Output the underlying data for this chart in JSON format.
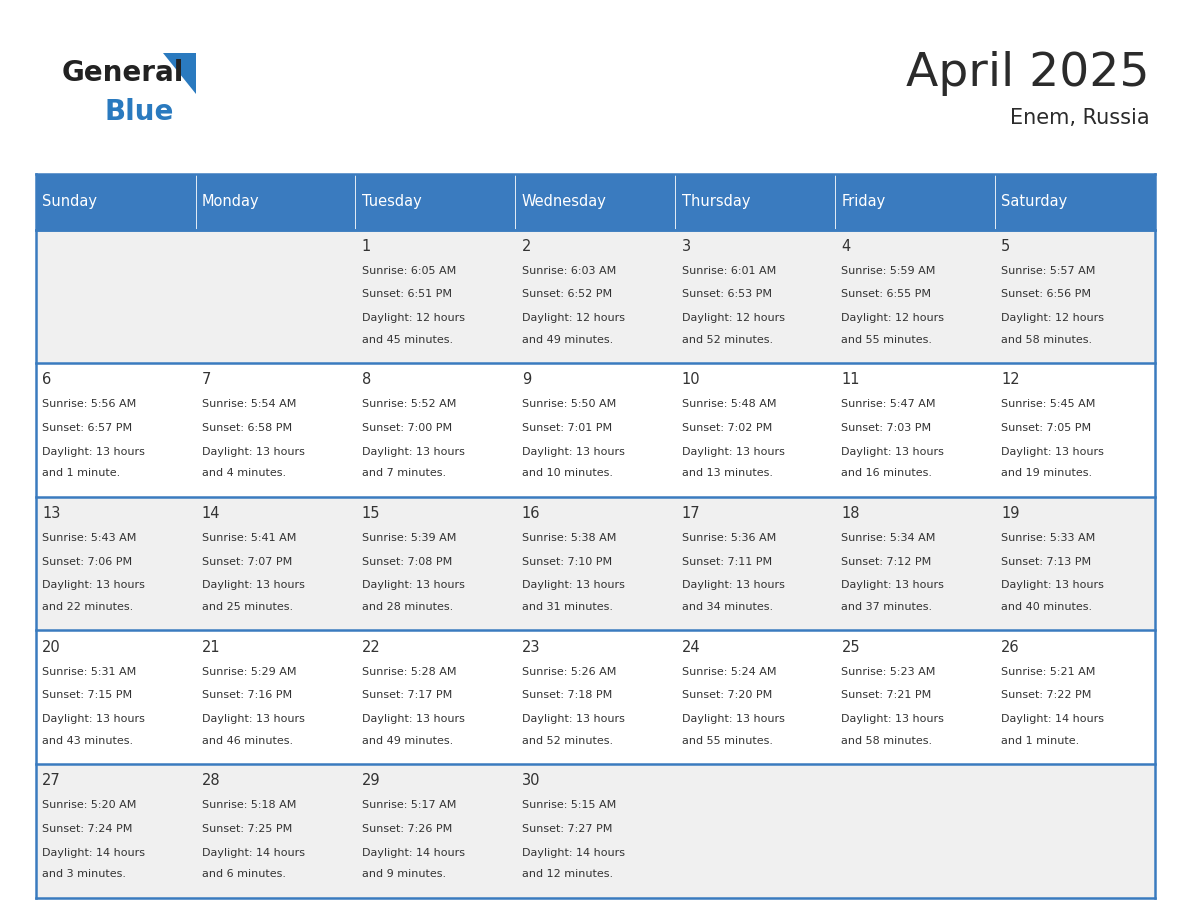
{
  "title": "April 2025",
  "subtitle": "Enem, Russia",
  "days_of_week": [
    "Sunday",
    "Monday",
    "Tuesday",
    "Wednesday",
    "Thursday",
    "Friday",
    "Saturday"
  ],
  "header_bg": "#3a7bbf",
  "header_text_color": "#ffffff",
  "cell_bg_odd": "#f0f0f0",
  "cell_bg_even": "#ffffff",
  "border_color": "#3a7bbf",
  "text_color": "#333333",
  "title_color": "#2b2b2b",
  "logo_general_color": "#222222",
  "logo_blue_color": "#2a7abf",
  "logo_triangle_color": "#2a7abf",
  "weeks": [
    [
      {
        "day": "",
        "sunrise": "",
        "sunset": "",
        "daylight1": "",
        "daylight2": ""
      },
      {
        "day": "",
        "sunrise": "",
        "sunset": "",
        "daylight1": "",
        "daylight2": ""
      },
      {
        "day": "1",
        "sunrise": "Sunrise: 6:05 AM",
        "sunset": "Sunset: 6:51 PM",
        "daylight1": "Daylight: 12 hours",
        "daylight2": "and 45 minutes."
      },
      {
        "day": "2",
        "sunrise": "Sunrise: 6:03 AM",
        "sunset": "Sunset: 6:52 PM",
        "daylight1": "Daylight: 12 hours",
        "daylight2": "and 49 minutes."
      },
      {
        "day": "3",
        "sunrise": "Sunrise: 6:01 AM",
        "sunset": "Sunset: 6:53 PM",
        "daylight1": "Daylight: 12 hours",
        "daylight2": "and 52 minutes."
      },
      {
        "day": "4",
        "sunrise": "Sunrise: 5:59 AM",
        "sunset": "Sunset: 6:55 PM",
        "daylight1": "Daylight: 12 hours",
        "daylight2": "and 55 minutes."
      },
      {
        "day": "5",
        "sunrise": "Sunrise: 5:57 AM",
        "sunset": "Sunset: 6:56 PM",
        "daylight1": "Daylight: 12 hours",
        "daylight2": "and 58 minutes."
      }
    ],
    [
      {
        "day": "6",
        "sunrise": "Sunrise: 5:56 AM",
        "sunset": "Sunset: 6:57 PM",
        "daylight1": "Daylight: 13 hours",
        "daylight2": "and 1 minute."
      },
      {
        "day": "7",
        "sunrise": "Sunrise: 5:54 AM",
        "sunset": "Sunset: 6:58 PM",
        "daylight1": "Daylight: 13 hours",
        "daylight2": "and 4 minutes."
      },
      {
        "day": "8",
        "sunrise": "Sunrise: 5:52 AM",
        "sunset": "Sunset: 7:00 PM",
        "daylight1": "Daylight: 13 hours",
        "daylight2": "and 7 minutes."
      },
      {
        "day": "9",
        "sunrise": "Sunrise: 5:50 AM",
        "sunset": "Sunset: 7:01 PM",
        "daylight1": "Daylight: 13 hours",
        "daylight2": "and 10 minutes."
      },
      {
        "day": "10",
        "sunrise": "Sunrise: 5:48 AM",
        "sunset": "Sunset: 7:02 PM",
        "daylight1": "Daylight: 13 hours",
        "daylight2": "and 13 minutes."
      },
      {
        "day": "11",
        "sunrise": "Sunrise: 5:47 AM",
        "sunset": "Sunset: 7:03 PM",
        "daylight1": "Daylight: 13 hours",
        "daylight2": "and 16 minutes."
      },
      {
        "day": "12",
        "sunrise": "Sunrise: 5:45 AM",
        "sunset": "Sunset: 7:05 PM",
        "daylight1": "Daylight: 13 hours",
        "daylight2": "and 19 minutes."
      }
    ],
    [
      {
        "day": "13",
        "sunrise": "Sunrise: 5:43 AM",
        "sunset": "Sunset: 7:06 PM",
        "daylight1": "Daylight: 13 hours",
        "daylight2": "and 22 minutes."
      },
      {
        "day": "14",
        "sunrise": "Sunrise: 5:41 AM",
        "sunset": "Sunset: 7:07 PM",
        "daylight1": "Daylight: 13 hours",
        "daylight2": "and 25 minutes."
      },
      {
        "day": "15",
        "sunrise": "Sunrise: 5:39 AM",
        "sunset": "Sunset: 7:08 PM",
        "daylight1": "Daylight: 13 hours",
        "daylight2": "and 28 minutes."
      },
      {
        "day": "16",
        "sunrise": "Sunrise: 5:38 AM",
        "sunset": "Sunset: 7:10 PM",
        "daylight1": "Daylight: 13 hours",
        "daylight2": "and 31 minutes."
      },
      {
        "day": "17",
        "sunrise": "Sunrise: 5:36 AM",
        "sunset": "Sunset: 7:11 PM",
        "daylight1": "Daylight: 13 hours",
        "daylight2": "and 34 minutes."
      },
      {
        "day": "18",
        "sunrise": "Sunrise: 5:34 AM",
        "sunset": "Sunset: 7:12 PM",
        "daylight1": "Daylight: 13 hours",
        "daylight2": "and 37 minutes."
      },
      {
        "day": "19",
        "sunrise": "Sunrise: 5:33 AM",
        "sunset": "Sunset: 7:13 PM",
        "daylight1": "Daylight: 13 hours",
        "daylight2": "and 40 minutes."
      }
    ],
    [
      {
        "day": "20",
        "sunrise": "Sunrise: 5:31 AM",
        "sunset": "Sunset: 7:15 PM",
        "daylight1": "Daylight: 13 hours",
        "daylight2": "and 43 minutes."
      },
      {
        "day": "21",
        "sunrise": "Sunrise: 5:29 AM",
        "sunset": "Sunset: 7:16 PM",
        "daylight1": "Daylight: 13 hours",
        "daylight2": "and 46 minutes."
      },
      {
        "day": "22",
        "sunrise": "Sunrise: 5:28 AM",
        "sunset": "Sunset: 7:17 PM",
        "daylight1": "Daylight: 13 hours",
        "daylight2": "and 49 minutes."
      },
      {
        "day": "23",
        "sunrise": "Sunrise: 5:26 AM",
        "sunset": "Sunset: 7:18 PM",
        "daylight1": "Daylight: 13 hours",
        "daylight2": "and 52 minutes."
      },
      {
        "day": "24",
        "sunrise": "Sunrise: 5:24 AM",
        "sunset": "Sunset: 7:20 PM",
        "daylight1": "Daylight: 13 hours",
        "daylight2": "and 55 minutes."
      },
      {
        "day": "25",
        "sunrise": "Sunrise: 5:23 AM",
        "sunset": "Sunset: 7:21 PM",
        "daylight1": "Daylight: 13 hours",
        "daylight2": "and 58 minutes."
      },
      {
        "day": "26",
        "sunrise": "Sunrise: 5:21 AM",
        "sunset": "Sunset: 7:22 PM",
        "daylight1": "Daylight: 14 hours",
        "daylight2": "and 1 minute."
      }
    ],
    [
      {
        "day": "27",
        "sunrise": "Sunrise: 5:20 AM",
        "sunset": "Sunset: 7:24 PM",
        "daylight1": "Daylight: 14 hours",
        "daylight2": "and 3 minutes."
      },
      {
        "day": "28",
        "sunrise": "Sunrise: 5:18 AM",
        "sunset": "Sunset: 7:25 PM",
        "daylight1": "Daylight: 14 hours",
        "daylight2": "and 6 minutes."
      },
      {
        "day": "29",
        "sunrise": "Sunrise: 5:17 AM",
        "sunset": "Sunset: 7:26 PM",
        "daylight1": "Daylight: 14 hours",
        "daylight2": "and 9 minutes."
      },
      {
        "day": "30",
        "sunrise": "Sunrise: 5:15 AM",
        "sunset": "Sunset: 7:27 PM",
        "daylight1": "Daylight: 14 hours",
        "daylight2": "and 12 minutes."
      },
      {
        "day": "",
        "sunrise": "",
        "sunset": "",
        "daylight1": "",
        "daylight2": ""
      },
      {
        "day": "",
        "sunrise": "",
        "sunset": "",
        "daylight1": "",
        "daylight2": ""
      },
      {
        "day": "",
        "sunrise": "",
        "sunset": "",
        "daylight1": "",
        "daylight2": ""
      }
    ]
  ]
}
